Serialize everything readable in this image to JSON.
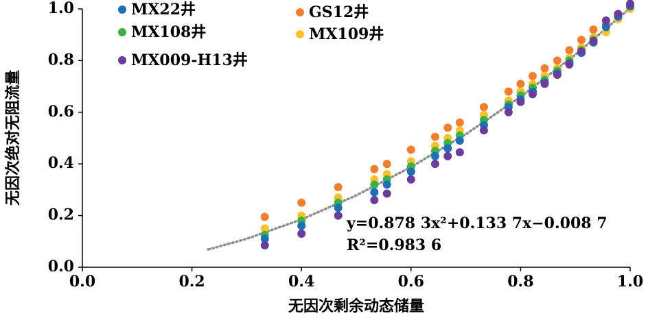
{
  "chart_data": {
    "type": "scatter",
    "x_label": "无因次剩余动态储量",
    "y_label": "无因次绝对无阻流量",
    "xlim": [
      0,
      1
    ],
    "ylim": [
      0,
      1
    ],
    "xticks": [
      {
        "value": 0,
        "label": "0.0"
      },
      {
        "value": 0.2,
        "label": "0.2"
      },
      {
        "value": 0.4,
        "label": "0.4"
      },
      {
        "value": 0.6,
        "label": "0.6"
      },
      {
        "value": 0.8,
        "label": "0.8"
      },
      {
        "value": 1,
        "label": "1.0"
      }
    ],
    "yticks": [
      {
        "value": 0,
        "label": "0.0"
      },
      {
        "value": 0.2,
        "label": "0.2"
      },
      {
        "value": 0.4,
        "label": "0.4"
      },
      {
        "value": 0.6,
        "label": "0.6"
      },
      {
        "value": 0.8,
        "label": "0.8"
      },
      {
        "value": 1,
        "label": "1.0"
      }
    ],
    "x": [
      0.333,
      0.4,
      0.467,
      0.533,
      0.556,
      0.6,
      0.644,
      0.667,
      0.689,
      0.733,
      0.778,
      0.8,
      0.822,
      0.844,
      0.867,
      0.889,
      0.911,
      0.933,
      0.956,
      0.978,
      1.0
    ],
    "series": [
      {
        "name": "MX22井",
        "color": "#1f6fb5",
        "values": [
          0.11,
          0.16,
          0.23,
          0.29,
          0.32,
          0.37,
          0.43,
          0.46,
          0.49,
          0.55,
          0.62,
          0.65,
          0.68,
          0.715,
          0.75,
          0.79,
          0.83,
          0.87,
          0.93,
          0.97,
          1.01
        ]
      },
      {
        "name": "GS12井",
        "color": "#f07f2f",
        "values": [
          0.195,
          0.25,
          0.31,
          0.38,
          0.4,
          0.455,
          0.505,
          0.54,
          0.56,
          0.62,
          0.68,
          0.71,
          0.74,
          0.77,
          0.8,
          0.84,
          0.88,
          0.92,
          0.94,
          0.98,
          1.01
        ]
      },
      {
        "name": "MX108井",
        "color": "#3cb04a",
        "values": [
          0.125,
          0.18,
          0.25,
          0.32,
          0.34,
          0.39,
          0.45,
          0.48,
          0.51,
          0.57,
          0.63,
          0.665,
          0.695,
          0.725,
          0.76,
          0.8,
          0.84,
          0.88,
          0.93,
          0.97,
          1.01
        ]
      },
      {
        "name": "MX109井",
        "color": "#fbc12a",
        "values": [
          0.15,
          0.2,
          0.27,
          0.34,
          0.36,
          0.41,
          0.47,
          0.5,
          0.53,
          0.59,
          0.645,
          0.68,
          0.71,
          0.74,
          0.77,
          0.81,
          0.85,
          0.89,
          0.91,
          0.96,
          1.0
        ]
      },
      {
        "name": "MX009-H13井",
        "color": "#6a3d9a",
        "values": [
          0.085,
          0.13,
          0.2,
          0.26,
          0.285,
          0.34,
          0.4,
          0.43,
          0.445,
          0.53,
          0.6,
          0.64,
          0.67,
          0.71,
          0.745,
          0.785,
          0.835,
          0.875,
          0.955,
          0.98,
          1.02
        ]
      }
    ],
    "trendline": {
      "color": "#8c8c8c",
      "x": [
        0.23,
        0.3,
        0.4,
        0.5,
        0.6,
        0.7,
        0.8,
        0.9,
        1.0
      ],
      "values": [
        0.069,
        0.11,
        0.185,
        0.278,
        0.388,
        0.515,
        0.66,
        0.823,
        1.003
      ]
    },
    "annotations": [
      "y=0.878 3x²+0.133 7x−0.008 7",
      "R²=0.983 6"
    ]
  }
}
